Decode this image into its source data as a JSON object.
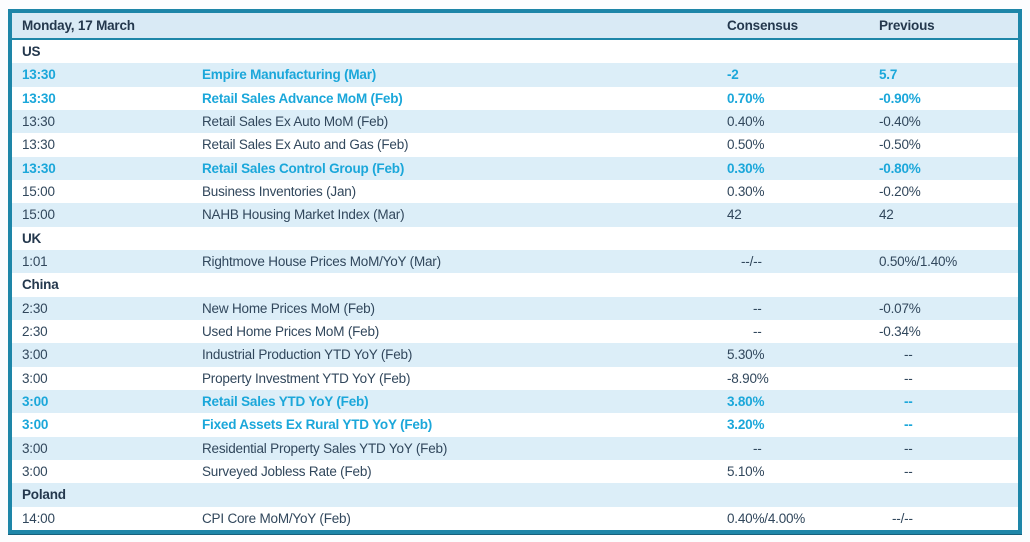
{
  "table": {
    "date_header": "Monday, 17 March",
    "columns": {
      "consensus": "Consensus",
      "previous": "Previous"
    },
    "colors": {
      "border_teal": "#1e86a8",
      "row_light_blue": "#dceef8",
      "text_navy": "#31475c",
      "text_highlight_cyan": "#1ba7da"
    },
    "rows": [
      {
        "type": "section",
        "label": "US"
      },
      {
        "type": "event",
        "time": "13:30",
        "event": "Empire Manufacturing (Mar)",
        "consensus": "-2",
        "previous": "5.7",
        "highlight": true
      },
      {
        "type": "event",
        "time": "13:30",
        "event": "Retail Sales Advance MoM (Feb)",
        "consensus": "0.70%",
        "previous": "-0.90%",
        "highlight": true
      },
      {
        "type": "event",
        "time": "13:30",
        "event": "Retail Sales Ex Auto MoM (Feb)",
        "consensus": "0.40%",
        "previous": "-0.40%",
        "highlight": false
      },
      {
        "type": "event",
        "time": "13:30",
        "event": "Retail Sales Ex Auto and Gas (Feb)",
        "consensus": "0.50%",
        "previous": "-0.50%",
        "highlight": false
      },
      {
        "type": "event",
        "time": "13:30",
        "event": "Retail Sales Control Group (Feb)",
        "consensus": "0.30%",
        "previous": "-0.80%",
        "highlight": true
      },
      {
        "type": "event",
        "time": "15:00",
        "event": "Business Inventories (Jan)",
        "consensus": "0.30%",
        "previous": "-0.20%",
        "highlight": false
      },
      {
        "type": "event",
        "time": "15:00",
        "event": "NAHB Housing Market Index (Mar)",
        "consensus": "42",
        "previous": "42",
        "highlight": false
      },
      {
        "type": "section",
        "label": "UK"
      },
      {
        "type": "event",
        "time": "1:01",
        "event": "Rightmove House Prices MoM/YoY (Mar)",
        "consensus": "--/--",
        "previous": "0.50%/1.40%",
        "highlight": false
      },
      {
        "type": "section",
        "label": "China"
      },
      {
        "type": "event",
        "time": "2:30",
        "event": "New Home Prices MoM (Feb)",
        "consensus": "--",
        "previous": "-0.07%",
        "highlight": false
      },
      {
        "type": "event",
        "time": "2:30",
        "event": "Used Home Prices MoM (Feb)",
        "consensus": "--",
        "previous": "-0.34%",
        "highlight": false
      },
      {
        "type": "event",
        "time": "3:00",
        "event": "Industrial Production YTD YoY (Feb)",
        "consensus": "5.30%",
        "previous": "--",
        "highlight": false
      },
      {
        "type": "event",
        "time": "3:00",
        "event": "Property Investment YTD YoY (Feb)",
        "consensus": "-8.90%",
        "previous": "--",
        "highlight": false
      },
      {
        "type": "event",
        "time": "3:00",
        "event": "Retail Sales YTD YoY (Feb)",
        "consensus": "3.80%",
        "previous": "--",
        "highlight": true
      },
      {
        "type": "event",
        "time": "3:00",
        "event": "Fixed Assets Ex Rural YTD YoY (Feb)",
        "consensus": "3.20%",
        "previous": "--",
        "highlight": true
      },
      {
        "type": "event",
        "time": "3:00",
        "event": "Residential Property Sales YTD YoY (Feb)",
        "consensus": "--",
        "previous": "--",
        "highlight": false
      },
      {
        "type": "event",
        "time": "3:00",
        "event": "Surveyed Jobless Rate (Feb)",
        "consensus": "5.10%",
        "previous": "--",
        "highlight": false
      },
      {
        "type": "section",
        "label": "Poland"
      },
      {
        "type": "event",
        "time": "14:00",
        "event": "CPI Core MoM/YoY (Feb)",
        "consensus": "0.40%/4.00%",
        "previous": "--/--",
        "highlight": false
      }
    ]
  }
}
